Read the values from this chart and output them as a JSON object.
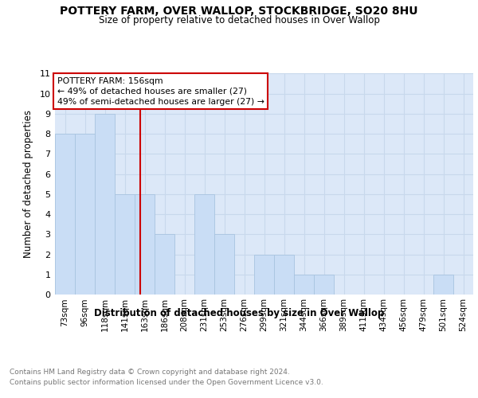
{
  "title": "POTTERY FARM, OVER WALLOP, STOCKBRIDGE, SO20 8HU",
  "subtitle": "Size of property relative to detached houses in Over Wallop",
  "xlabel": "Distribution of detached houses by size in Over Wallop",
  "ylabel": "Number of detached properties",
  "categories": [
    "73sqm",
    "96sqm",
    "118sqm",
    "141sqm",
    "163sqm",
    "186sqm",
    "208sqm",
    "231sqm",
    "253sqm",
    "276sqm",
    "299sqm",
    "321sqm",
    "344sqm",
    "366sqm",
    "389sqm",
    "411sqm",
    "434sqm",
    "456sqm",
    "479sqm",
    "501sqm",
    "524sqm"
  ],
  "values": [
    8,
    8,
    9,
    5,
    5,
    3,
    0,
    5,
    3,
    0,
    2,
    2,
    1,
    1,
    0,
    0,
    0,
    0,
    0,
    1,
    0
  ],
  "bar_color": "#c9ddf5",
  "bar_edge_color": "#a8c4e0",
  "grid_color": "#c8d8ec",
  "property_sqm": 156,
  "annotation_text_line1": "POTTERY FARM: 156sqm",
  "annotation_text_line2": "← 49% of detached houses are smaller (27)",
  "annotation_text_line3": "49% of semi-detached houses are larger (27) →",
  "annotation_box_color": "#ffffff",
  "annotation_box_edge": "#cc0000",
  "vline_color": "#cc0000",
  "ylim": [
    0,
    11
  ],
  "footnote1": "Contains HM Land Registry data © Crown copyright and database right 2024.",
  "footnote2": "Contains public sector information licensed under the Open Government Licence v3.0.",
  "bg_color": "#ffffff",
  "plot_bg_color": "#dce8f8"
}
